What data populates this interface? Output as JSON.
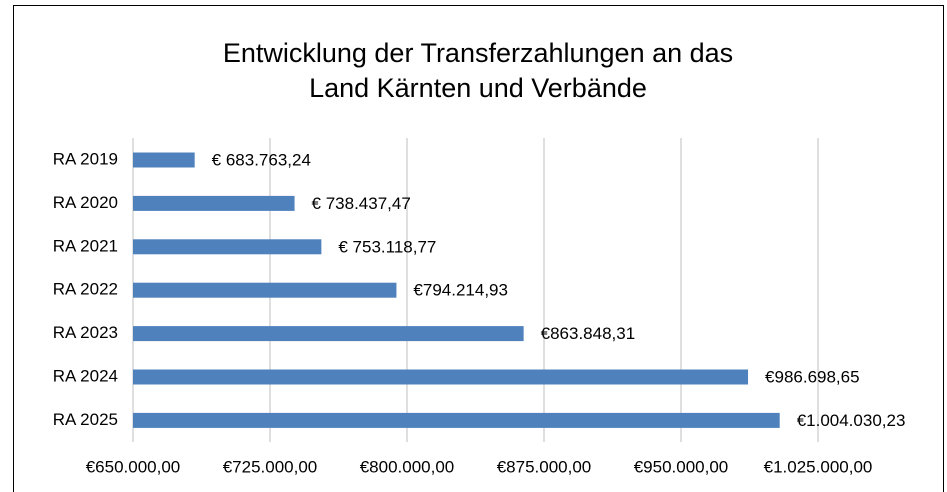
{
  "chart_data": {
    "type": "bar",
    "orientation": "horizontal",
    "title": [
      "Entwicklung der Transferzahlungen an das",
      "Land Kärnten und Verbände"
    ],
    "categories": [
      "RA 2019",
      "RA 2020",
      "RA 2021",
      "RA 2022",
      "RA 2023",
      "RA 2024",
      "RA 2025"
    ],
    "values": [
      683763.24,
      738437.47,
      753118.77,
      794214.93,
      863848.31,
      986698.65,
      1004030.23
    ],
    "value_labels": [
      "€ 683.763,24",
      "€ 738.437,47",
      "€ 753.118,77",
      "€794.214,93",
      "€863.848,31",
      "€986.698,65",
      "€1.004.030,23"
    ],
    "color": "#4f81bd",
    "xlim": [
      650000,
      1025000
    ],
    "xticks": [
      {
        "value": 650000,
        "label": "€650.000,00"
      },
      {
        "value": 725000,
        "label": "€725.000,00"
      },
      {
        "value": 800000,
        "label": "€800.000,00"
      },
      {
        "value": 875000,
        "label": "€875.000,00"
      },
      {
        "value": 950000,
        "label": "€950.000,00"
      },
      {
        "value": 1025000,
        "label": "€1.025.000,00"
      }
    ],
    "grid": true
  }
}
